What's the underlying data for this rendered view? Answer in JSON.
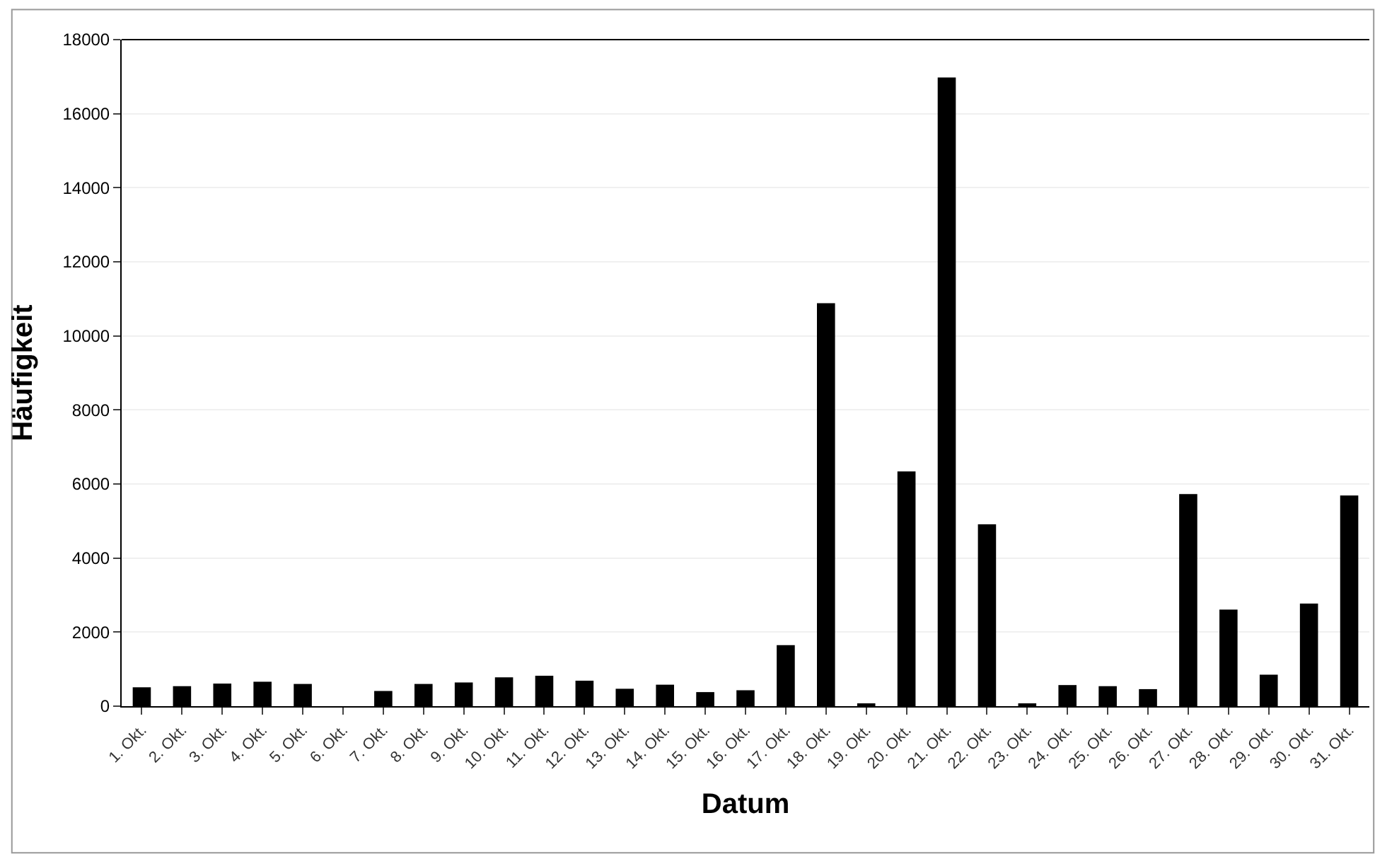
{
  "chart_data": {
    "type": "bar",
    "xlabel": "Datum",
    "ylabel": "Häufigkeit",
    "categories": [
      "1. Okt.",
      "2. Okt.",
      "3. Okt.",
      "4. Okt.",
      "5. Okt.",
      "6. Okt.",
      "7. Okt.",
      "8. Okt.",
      "9. Okt.",
      "10. Okt.",
      "11. Okt.",
      "12. Okt.",
      "13. Okt.",
      "14. Okt.",
      "15. Okt.",
      "16. Okt.",
      "17. Okt.",
      "18. Okt.",
      "19. Okt.",
      "20. Okt.",
      "21. Okt.",
      "22. Okt.",
      "23. Okt.",
      "24. Okt.",
      "25. Okt.",
      "26. Okt.",
      "27. Okt.",
      "28. Okt.",
      "29. Okt.",
      "30. Okt.",
      "31. Okt."
    ],
    "values": [
      510,
      540,
      610,
      660,
      600,
      0,
      410,
      600,
      640,
      780,
      820,
      690,
      470,
      580,
      380,
      430,
      1650,
      10880,
      50,
      6340,
      16980,
      4910,
      50,
      570,
      540,
      460,
      5730,
      2610,
      850,
      2770,
      5690
    ],
    "color": "#000000",
    "ylim": [
      0,
      18000
    ],
    "yticks": [
      0,
      2000,
      4000,
      6000,
      8000,
      10000,
      12000,
      14000,
      16000,
      18000
    ],
    "grid": "y",
    "legend": false
  }
}
